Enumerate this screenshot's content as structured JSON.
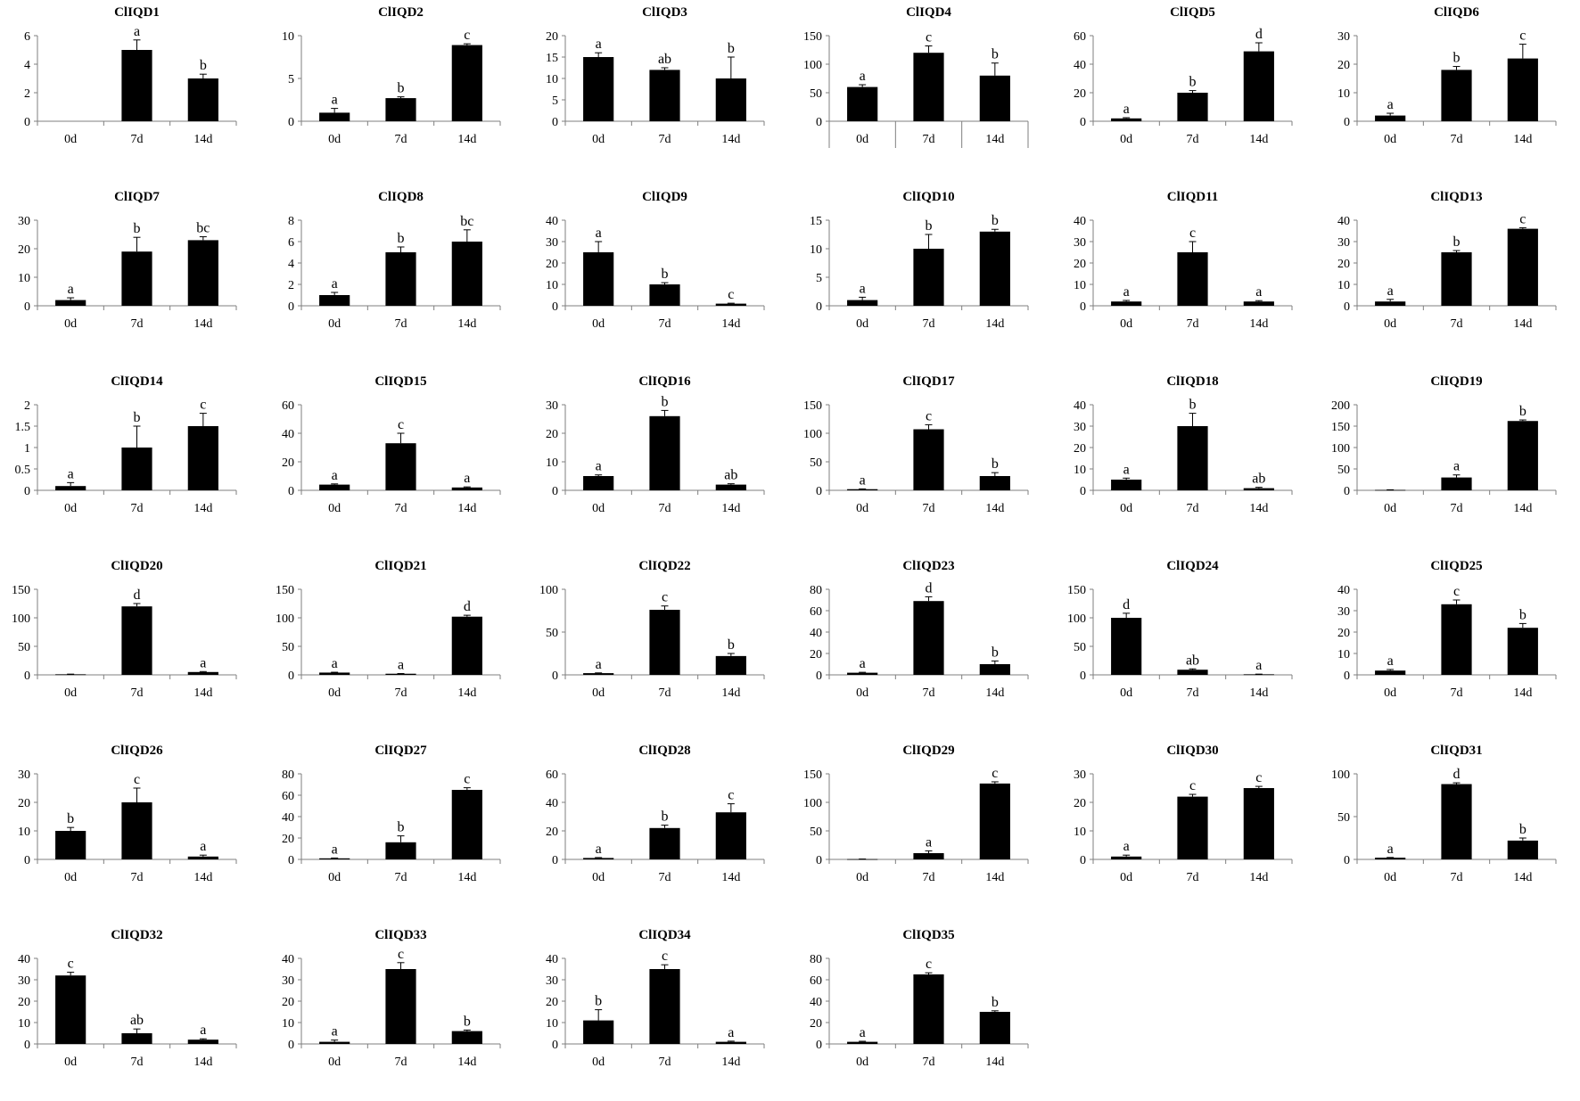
{
  "chart_data": [
    {
      "type": "bar",
      "title": "ClIQD1",
      "categories": [
        "0d",
        "7d",
        "14d"
      ],
      "values": [
        0,
        5,
        3
      ],
      "errors": [
        0,
        0.7,
        0.3
      ],
      "letters": [
        "",
        "a",
        "b"
      ],
      "yticks": [
        0,
        2,
        4,
        6
      ],
      "ylim": [
        0,
        6
      ],
      "x_separators": false
    },
    {
      "type": "bar",
      "title": "ClIQD2",
      "categories": [
        "0d",
        "7d",
        "14d"
      ],
      "values": [
        1,
        2.7,
        8.9
      ],
      "errors": [
        0.5,
        0.15,
        0.15
      ],
      "letters": [
        "a",
        "b",
        "c"
      ],
      "yticks": [
        0,
        5,
        10
      ],
      "ylim": [
        0,
        10
      ],
      "x_separators": false
    },
    {
      "type": "bar",
      "title": "ClIQD3",
      "categories": [
        "0d",
        "7d",
        "14d"
      ],
      "values": [
        15,
        12,
        10
      ],
      "errors": [
        1,
        0.5,
        5
      ],
      "letters": [
        "a",
        "ab",
        "b"
      ],
      "yticks": [
        0,
        5,
        10,
        15,
        20
      ],
      "ylim": [
        0,
        20
      ],
      "x_separators": false
    },
    {
      "type": "bar",
      "title": "ClIQD4",
      "categories": [
        "0d",
        "7d",
        "14d"
      ],
      "values": [
        60,
        120,
        80
      ],
      "errors": [
        4,
        12,
        22
      ],
      "letters": [
        "a",
        "c",
        "b"
      ],
      "yticks": [
        0,
        50,
        100,
        150
      ],
      "ylim": [
        0,
        150
      ],
      "x_separators": true
    },
    {
      "type": "bar",
      "title": "ClIQD5",
      "categories": [
        "0d",
        "7d",
        "14d"
      ],
      "values": [
        2,
        20,
        49
      ],
      "errors": [
        0.5,
        1.5,
        6
      ],
      "letters": [
        "a",
        "b",
        "d"
      ],
      "yticks": [
        0,
        20,
        40,
        60
      ],
      "ylim": [
        0,
        60
      ],
      "x_separators": false
    },
    {
      "type": "bar",
      "title": "ClIQD6",
      "categories": [
        "0d",
        "7d",
        "14d"
      ],
      "values": [
        2,
        18,
        22
      ],
      "errors": [
        0.8,
        1.2,
        5
      ],
      "letters": [
        "a",
        "b",
        "c"
      ],
      "yticks": [
        0,
        10,
        20,
        30
      ],
      "ylim": [
        0,
        30
      ],
      "x_separators": false
    },
    {
      "type": "bar",
      "title": "ClIQD7",
      "categories": [
        "0d",
        "7d",
        "14d"
      ],
      "values": [
        2,
        19,
        23
      ],
      "errors": [
        0.8,
        5,
        1.2
      ],
      "letters": [
        "a",
        "b",
        "bc"
      ],
      "yticks": [
        0,
        10,
        20,
        30
      ],
      "ylim": [
        0,
        30
      ],
      "x_separators": false
    },
    {
      "type": "bar",
      "title": "ClIQD8",
      "categories": [
        "0d",
        "7d",
        "14d"
      ],
      "values": [
        1,
        5,
        6
      ],
      "errors": [
        0.25,
        0.5,
        1.1
      ],
      "letters": [
        "a",
        "b",
        "bc"
      ],
      "yticks": [
        0,
        2,
        4,
        6,
        8
      ],
      "ylim": [
        0,
        8
      ],
      "x_separators": false
    },
    {
      "type": "bar",
      "title": "ClIQD9",
      "categories": [
        "0d",
        "7d",
        "14d"
      ],
      "values": [
        25,
        10,
        1
      ],
      "errors": [
        5,
        0.8,
        0.2
      ],
      "letters": [
        "a",
        "b",
        "c"
      ],
      "yticks": [
        0,
        10,
        20,
        30,
        40
      ],
      "ylim": [
        0,
        40
      ],
      "x_separators": false
    },
    {
      "type": "bar",
      "title": "ClIQD10",
      "categories": [
        "0d",
        "7d",
        "14d"
      ],
      "values": [
        1,
        10,
        13
      ],
      "errors": [
        0.5,
        2.5,
        0.4
      ],
      "letters": [
        "a",
        "b",
        "b"
      ],
      "yticks": [
        0,
        5,
        10,
        15
      ],
      "ylim": [
        0,
        15
      ],
      "x_separators": false
    },
    {
      "type": "bar",
      "title": "ClIQD11",
      "categories": [
        "0d",
        "7d",
        "14d"
      ],
      "values": [
        2,
        25,
        2
      ],
      "errors": [
        0.5,
        5,
        0.4
      ],
      "letters": [
        "a",
        "c",
        "a"
      ],
      "yticks": [
        0,
        10,
        20,
        30,
        40
      ],
      "ylim": [
        0,
        40
      ],
      "x_separators": false
    },
    {
      "type": "bar",
      "title": "ClIQD13",
      "categories": [
        "0d",
        "7d",
        "14d"
      ],
      "values": [
        2,
        25,
        36
      ],
      "errors": [
        1,
        0.8,
        0.5
      ],
      "letters": [
        "a",
        "b",
        "c"
      ],
      "yticks": [
        0,
        10,
        20,
        30,
        40
      ],
      "ylim": [
        0,
        40
      ],
      "x_separators": false
    },
    {
      "type": "bar",
      "title": "ClIQD14",
      "categories": [
        "0d",
        "7d",
        "14d"
      ],
      "values": [
        0.1,
        1,
        1.5
      ],
      "errors": [
        0.08,
        0.5,
        0.3
      ],
      "letters": [
        "a",
        "b",
        "c"
      ],
      "yticks": [
        0,
        0.5,
        1,
        1.5,
        2
      ],
      "ylim": [
        0,
        2
      ],
      "x_separators": false
    },
    {
      "type": "bar",
      "title": "ClIQD15",
      "categories": [
        "0d",
        "7d",
        "14d"
      ],
      "values": [
        4,
        33,
        2
      ],
      "errors": [
        0.5,
        7,
        0.4
      ],
      "letters": [
        "a",
        "c",
        "a"
      ],
      "yticks": [
        0,
        20,
        40,
        60
      ],
      "ylim": [
        0,
        60
      ],
      "x_separators": false
    },
    {
      "type": "bar",
      "title": "ClIQD16",
      "categories": [
        "0d",
        "7d",
        "14d"
      ],
      "values": [
        5,
        26,
        2
      ],
      "errors": [
        0.4,
        2,
        0.3
      ],
      "letters": [
        "a",
        "b",
        "ab"
      ],
      "yticks": [
        0,
        10,
        20,
        30
      ],
      "ylim": [
        0,
        30
      ],
      "x_separators": false
    },
    {
      "type": "bar",
      "title": "ClIQD17",
      "categories": [
        "0d",
        "7d",
        "14d"
      ],
      "values": [
        2,
        107,
        25
      ],
      "errors": [
        0.5,
        8,
        6
      ],
      "letters": [
        "a",
        "c",
        "b"
      ],
      "yticks": [
        0,
        50,
        100,
        150
      ],
      "ylim": [
        0,
        150
      ],
      "x_separators": false
    },
    {
      "type": "bar",
      "title": "ClIQD18",
      "categories": [
        "0d",
        "7d",
        "14d"
      ],
      "values": [
        5,
        30,
        1
      ],
      "errors": [
        0.7,
        6,
        0.4
      ],
      "letters": [
        "a",
        "b",
        "ab"
      ],
      "yticks": [
        0,
        10,
        20,
        30,
        40
      ],
      "ylim": [
        0,
        40
      ],
      "x_separators": false
    },
    {
      "type": "bar",
      "title": "ClIQD19",
      "categories": [
        "0d",
        "7d",
        "14d"
      ],
      "values": [
        1,
        30,
        162
      ],
      "errors": [
        0.3,
        6,
        2.5
      ],
      "letters": [
        "",
        "a",
        "b"
      ],
      "yticks": [
        0,
        50,
        100,
        150,
        200
      ],
      "ylim": [
        0,
        200
      ],
      "x_separators": false
    },
    {
      "type": "bar",
      "title": "ClIQD20",
      "categories": [
        "0d",
        "7d",
        "14d"
      ],
      "values": [
        1,
        120,
        5
      ],
      "errors": [
        0.3,
        5,
        0.8
      ],
      "letters": [
        "",
        "d",
        "a"
      ],
      "yticks": [
        0,
        50,
        100,
        150
      ],
      "ylim": [
        0,
        150
      ],
      "x_separators": false
    },
    {
      "type": "bar",
      "title": "ClIQD21",
      "categories": [
        "0d",
        "7d",
        "14d"
      ],
      "values": [
        4,
        2,
        102
      ],
      "errors": [
        0.6,
        0.3,
        2.5
      ],
      "letters": [
        "a",
        "a",
        "d"
      ],
      "yticks": [
        0,
        50,
        100,
        150
      ],
      "ylim": [
        0,
        150
      ],
      "x_separators": false
    },
    {
      "type": "bar",
      "title": "ClIQD22",
      "categories": [
        "0d",
        "7d",
        "14d"
      ],
      "values": [
        2,
        76,
        22
      ],
      "errors": [
        0.3,
        4.5,
        3
      ],
      "letters": [
        "a",
        "c",
        "b"
      ],
      "yticks": [
        0,
        50,
        100
      ],
      "ylim": [
        0,
        100
      ],
      "x_separators": false
    },
    {
      "type": "bar",
      "title": "ClIQD23",
      "categories": [
        "0d",
        "7d",
        "14d"
      ],
      "values": [
        2,
        69,
        10
      ],
      "errors": [
        0.4,
        4,
        3
      ],
      "letters": [
        "a",
        "d",
        "b"
      ],
      "yticks": [
        0,
        20,
        40,
        60,
        80
      ],
      "ylim": [
        0,
        80
      ],
      "x_separators": false
    },
    {
      "type": "bar",
      "title": "ClIQD24",
      "categories": [
        "0d",
        "7d",
        "14d"
      ],
      "values": [
        100,
        9,
        1
      ],
      "errors": [
        8,
        1.5,
        0.3
      ],
      "letters": [
        "d",
        "ab",
        "a"
      ],
      "yticks": [
        0,
        50,
        100,
        150
      ],
      "ylim": [
        0,
        150
      ],
      "x_separators": false
    },
    {
      "type": "bar",
      "title": "ClIQD25",
      "categories": [
        "0d",
        "7d",
        "14d"
      ],
      "values": [
        2,
        33,
        22
      ],
      "errors": [
        0.5,
        2,
        2
      ],
      "letters": [
        "a",
        "c",
        "b"
      ],
      "yticks": [
        0,
        10,
        20,
        30,
        40
      ],
      "ylim": [
        0,
        40
      ],
      "x_separators": false
    },
    {
      "type": "bar",
      "title": "ClIQD26",
      "categories": [
        "0d",
        "7d",
        "14d"
      ],
      "values": [
        10,
        20,
        1
      ],
      "errors": [
        1.2,
        5,
        0.5
      ],
      "letters": [
        "b",
        "c",
        "a"
      ],
      "yticks": [
        0,
        10,
        20,
        30
      ],
      "ylim": [
        0,
        30
      ],
      "x_separators": false
    },
    {
      "type": "bar",
      "title": "ClIQD27",
      "categories": [
        "0d",
        "7d",
        "14d"
      ],
      "values": [
        1,
        16,
        65
      ],
      "errors": [
        0.3,
        6,
        2
      ],
      "letters": [
        "a",
        "b",
        "c"
      ],
      "yticks": [
        0,
        20,
        40,
        60,
        80
      ],
      "ylim": [
        0,
        80
      ],
      "x_separators": false
    },
    {
      "type": "bar",
      "title": "ClIQD28",
      "categories": [
        "0d",
        "7d",
        "14d"
      ],
      "values": [
        1,
        22,
        33
      ],
      "errors": [
        0.3,
        2,
        6
      ],
      "letters": [
        "a",
        "b",
        "c"
      ],
      "yticks": [
        0,
        20,
        40,
        60
      ],
      "ylim": [
        0,
        60
      ],
      "x_separators": false
    },
    {
      "type": "bar",
      "title": "ClIQD29",
      "categories": [
        "0d",
        "7d",
        "14d"
      ],
      "values": [
        0.5,
        11,
        133
      ],
      "errors": [
        0.2,
        4,
        3
      ],
      "letters": [
        "",
        "a",
        "c"
      ],
      "yticks": [
        0,
        50,
        100,
        150
      ],
      "ylim": [
        0,
        150
      ],
      "x_separators": false
    },
    {
      "type": "bar",
      "title": "ClIQD30",
      "categories": [
        "0d",
        "7d",
        "14d"
      ],
      "values": [
        1,
        22,
        25
      ],
      "errors": [
        0.5,
        0.8,
        0.6
      ],
      "letters": [
        "a",
        "c",
        "c"
      ],
      "yticks": [
        0,
        10,
        20,
        30
      ],
      "ylim": [
        0,
        30
      ],
      "x_separators": false
    },
    {
      "type": "bar",
      "title": "ClIQD31",
      "categories": [
        "0d",
        "7d",
        "14d"
      ],
      "values": [
        2,
        88,
        22
      ],
      "errors": [
        0.3,
        1.5,
        3
      ],
      "letters": [
        "a",
        "d",
        "b"
      ],
      "yticks": [
        0,
        50,
        100
      ],
      "ylim": [
        0,
        100
      ],
      "x_separators": false
    },
    {
      "type": "bar",
      "title": "ClIQD32",
      "categories": [
        "0d",
        "7d",
        "14d"
      ],
      "values": [
        32,
        5,
        2
      ],
      "errors": [
        1.5,
        2,
        0.4
      ],
      "letters": [
        "c",
        "ab",
        "a"
      ],
      "yticks": [
        0,
        10,
        20,
        30,
        40
      ],
      "ylim": [
        0,
        40
      ],
      "x_separators": false
    },
    {
      "type": "bar",
      "title": "ClIQD33",
      "categories": [
        "0d",
        "7d",
        "14d"
      ],
      "values": [
        1,
        35,
        6
      ],
      "errors": [
        0.8,
        3,
        0.5
      ],
      "letters": [
        "a",
        "c",
        "b"
      ],
      "yticks": [
        0,
        10,
        20,
        30,
        40
      ],
      "ylim": [
        0,
        40
      ],
      "x_separators": false
    },
    {
      "type": "bar",
      "title": "ClIQD34",
      "categories": [
        "0d",
        "7d",
        "14d"
      ],
      "values": [
        11,
        35,
        1
      ],
      "errors": [
        5,
        2,
        0.3
      ],
      "letters": [
        "b",
        "c",
        "a"
      ],
      "yticks": [
        0,
        10,
        20,
        30,
        40
      ],
      "ylim": [
        0,
        40
      ],
      "x_separators": false
    },
    {
      "type": "bar",
      "title": "ClIQD35",
      "categories": [
        "0d",
        "7d",
        "14d"
      ],
      "values": [
        2,
        65,
        30
      ],
      "errors": [
        0.5,
        1.5,
        1
      ],
      "letters": [
        "a",
        "c",
        "b"
      ],
      "yticks": [
        0,
        20,
        40,
        60,
        80
      ],
      "ylim": [
        0,
        80
      ],
      "x_separators": false
    }
  ]
}
